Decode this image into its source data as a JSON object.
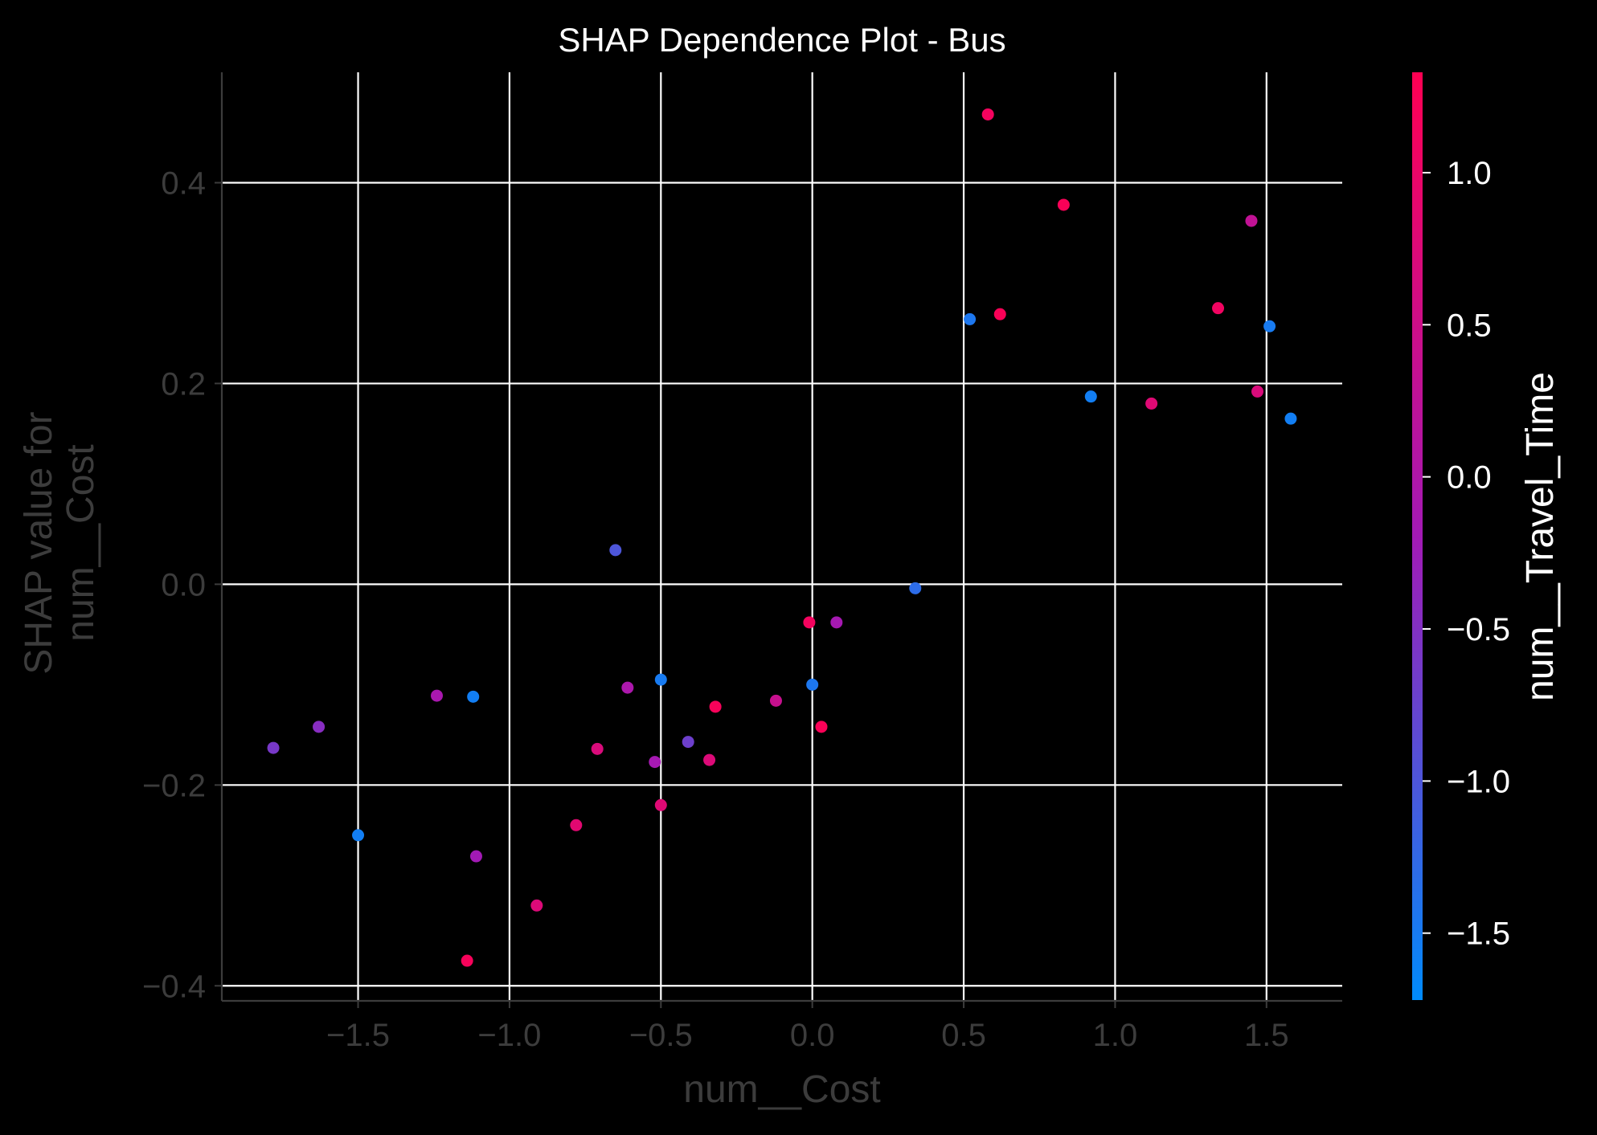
{
  "chart_data": {
    "type": "scatter",
    "title": "SHAP Dependence Plot - Bus",
    "xlabel": "num__Cost",
    "ylabel_lines": [
      "SHAP value for",
      "num__Cost"
    ],
    "xlim": [
      -1.95,
      1.75
    ],
    "ylim": [
      -0.415,
      0.51
    ],
    "xticks": [
      -1.5,
      -1.0,
      -0.5,
      0.0,
      0.5,
      1.0,
      1.5
    ],
    "xtick_labels": [
      "−1.5",
      "−1.0",
      "−0.5",
      "0.0",
      "0.5",
      "1.0",
      "1.5"
    ],
    "yticks": [
      -0.4,
      -0.2,
      0.0,
      0.2,
      0.4
    ],
    "ytick_labels": [
      "−0.4",
      "−0.2",
      "0.0",
      "0.2",
      "0.4"
    ],
    "grid": true,
    "colorbar": {
      "label": "num__Travel_Time",
      "range": [
        -1.72,
        1.33
      ],
      "ticks": [
        -1.5,
        -1.0,
        -0.5,
        0.0,
        0.5,
        1.0
      ],
      "tick_labels": [
        "−1.5",
        "−1.0",
        "−0.5",
        "0.0",
        "0.5",
        "1.0"
      ],
      "colors": [
        "#008bfb",
        "#ff0052"
      ]
    },
    "points": [
      {
        "x": -1.78,
        "y": -0.163,
        "c": -0.6
      },
      {
        "x": -1.63,
        "y": -0.142,
        "c": -0.45
      },
      {
        "x": -1.5,
        "y": -0.25,
        "c": -1.55
      },
      {
        "x": -1.24,
        "y": -0.111,
        "c": -0.1
      },
      {
        "x": -1.12,
        "y": -0.112,
        "c": -1.55
      },
      {
        "x": -1.14,
        "y": -0.375,
        "c": 1.2
      },
      {
        "x": -1.11,
        "y": -0.271,
        "c": -0.2
      },
      {
        "x": -0.91,
        "y": -0.32,
        "c": 0.75
      },
      {
        "x": -0.78,
        "y": -0.24,
        "c": 0.85
      },
      {
        "x": -0.71,
        "y": -0.164,
        "c": 0.7
      },
      {
        "x": -0.65,
        "y": 0.034,
        "c": -1.0
      },
      {
        "x": -0.61,
        "y": -0.103,
        "c": -0.05
      },
      {
        "x": -0.52,
        "y": -0.177,
        "c": -0.15
      },
      {
        "x": -0.5,
        "y": -0.095,
        "c": -1.5
      },
      {
        "x": -0.5,
        "y": -0.22,
        "c": 0.8
      },
      {
        "x": -0.41,
        "y": -0.157,
        "c": -0.7
      },
      {
        "x": -0.34,
        "y": -0.175,
        "c": 0.75
      },
      {
        "x": -0.32,
        "y": -0.122,
        "c": 1.2
      },
      {
        "x": -0.12,
        "y": -0.116,
        "c": 0.4
      },
      {
        "x": -0.01,
        "y": -0.038,
        "c": 1.15
      },
      {
        "x": 0.0,
        "y": -0.1,
        "c": -1.45
      },
      {
        "x": 0.03,
        "y": -0.142,
        "c": 1.25
      },
      {
        "x": 0.08,
        "y": -0.038,
        "c": -0.15
      },
      {
        "x": 0.34,
        "y": -0.004,
        "c": -1.3
      },
      {
        "x": 0.52,
        "y": 0.264,
        "c": -1.45
      },
      {
        "x": 0.58,
        "y": 0.468,
        "c": 1.15
      },
      {
        "x": 0.62,
        "y": 0.269,
        "c": 1.25
      },
      {
        "x": 0.83,
        "y": 0.378,
        "c": 1.25
      },
      {
        "x": 0.92,
        "y": 0.187,
        "c": -1.55
      },
      {
        "x": 1.12,
        "y": 0.18,
        "c": 0.8
      },
      {
        "x": 1.34,
        "y": 0.275,
        "c": 1.1
      },
      {
        "x": 1.45,
        "y": 0.362,
        "c": 0.3
      },
      {
        "x": 1.47,
        "y": 0.192,
        "c": 0.7
      },
      {
        "x": 1.51,
        "y": 0.257,
        "c": -1.5
      },
      {
        "x": 1.58,
        "y": 0.165,
        "c": -1.55
      }
    ]
  }
}
